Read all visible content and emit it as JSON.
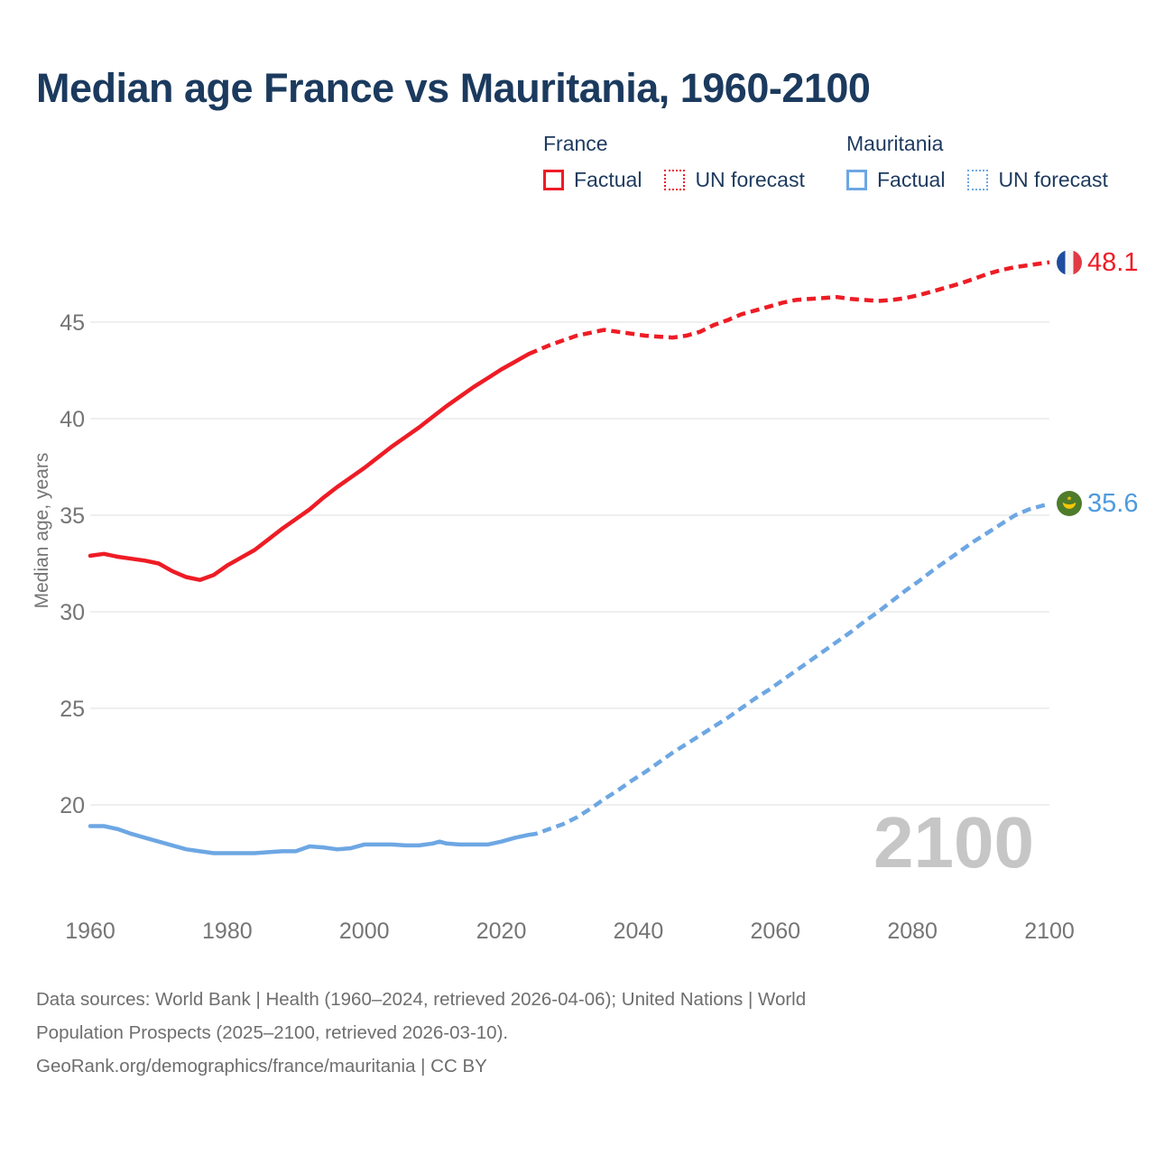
{
  "title": "Median age France vs Mauritania, 1960-2100",
  "legend": {
    "france": {
      "name": "France",
      "factual_label": "Factual",
      "forecast_label": "UN forecast"
    },
    "mauritania": {
      "name": "Mauritania",
      "factual_label": "Factual",
      "forecast_label": "UN forecast"
    }
  },
  "end_labels": {
    "france_value": "48.1",
    "mauritania_value": "35.6"
  },
  "watermark": "2100",
  "footer": {
    "line1": "Data sources: World Bank | Health (1960–2024, retrieved 2026-04-06); United Nations | World",
    "line2": "Population Prospects (2025–2100, retrieved 2026-03-10).",
    "line3": "GeoRank.org/demographics/france/mauritania | CC BY"
  },
  "colors": {
    "france": "#ee1c25",
    "mauritania": "#6da7e3",
    "title_navy": "#1b3a5e",
    "axis_gray": "#757575",
    "gridline": "#eaeaea",
    "watermark_gray": "#c6c6c6"
  },
  "chart_data": {
    "type": "line",
    "title": "Median age France vs Mauritania, 1960-2100",
    "xlabel": "",
    "ylabel": "Median age, years",
    "xlim": [
      1960,
      2100
    ],
    "ylim": [
      16.5,
      48.5
    ],
    "x_ticks": [
      1960,
      1980,
      2000,
      2020,
      2040,
      2060,
      2080,
      2100
    ],
    "y_ticks": [
      20,
      25,
      30,
      35,
      40,
      45
    ],
    "grid": "horizontal-only",
    "legend_position": "top-right",
    "series": [
      {
        "name": "France Factual",
        "style": "solid",
        "color": "#ee1c25",
        "points": [
          [
            1960,
            32.9
          ],
          [
            1962,
            33.0
          ],
          [
            1964,
            32.85
          ],
          [
            1966,
            32.75
          ],
          [
            1968,
            32.65
          ],
          [
            1970,
            32.5
          ],
          [
            1972,
            32.1
          ],
          [
            1974,
            31.8
          ],
          [
            1976,
            31.65
          ],
          [
            1978,
            31.9
          ],
          [
            1980,
            32.4
          ],
          [
            1982,
            32.8
          ],
          [
            1984,
            33.2
          ],
          [
            1986,
            33.75
          ],
          [
            1988,
            34.3
          ],
          [
            1990,
            34.8
          ],
          [
            1992,
            35.3
          ],
          [
            1994,
            35.9
          ],
          [
            1996,
            36.45
          ],
          [
            1998,
            36.95
          ],
          [
            2000,
            37.45
          ],
          [
            2002,
            38.0
          ],
          [
            2004,
            38.55
          ],
          [
            2006,
            39.05
          ],
          [
            2008,
            39.55
          ],
          [
            2010,
            40.1
          ],
          [
            2012,
            40.65
          ],
          [
            2014,
            41.15
          ],
          [
            2016,
            41.65
          ],
          [
            2018,
            42.1
          ],
          [
            2020,
            42.55
          ],
          [
            2022,
            42.95
          ],
          [
            2024,
            43.35
          ]
        ]
      },
      {
        "name": "France UN forecast",
        "style": "dashed",
        "color": "#ee1c25",
        "points": [
          [
            2024,
            43.35
          ],
          [
            2025,
            43.5
          ],
          [
            2027,
            43.8
          ],
          [
            2029,
            44.05
          ],
          [
            2031,
            44.3
          ],
          [
            2033,
            44.45
          ],
          [
            2035,
            44.6
          ],
          [
            2037,
            44.5
          ],
          [
            2039,
            44.4
          ],
          [
            2041,
            44.3
          ],
          [
            2043,
            44.25
          ],
          [
            2045,
            44.2
          ],
          [
            2047,
            44.3
          ],
          [
            2049,
            44.5
          ],
          [
            2051,
            44.85
          ],
          [
            2053,
            45.1
          ],
          [
            2055,
            45.4
          ],
          [
            2057,
            45.6
          ],
          [
            2059,
            45.8
          ],
          [
            2061,
            46.0
          ],
          [
            2063,
            46.15
          ],
          [
            2065,
            46.2
          ],
          [
            2067,
            46.25
          ],
          [
            2069,
            46.3
          ],
          [
            2071,
            46.2
          ],
          [
            2073,
            46.15
          ],
          [
            2075,
            46.1
          ],
          [
            2077,
            46.15
          ],
          [
            2079,
            46.25
          ],
          [
            2081,
            46.4
          ],
          [
            2083,
            46.6
          ],
          [
            2085,
            46.8
          ],
          [
            2087,
            47.0
          ],
          [
            2089,
            47.25
          ],
          [
            2091,
            47.5
          ],
          [
            2093,
            47.7
          ],
          [
            2095,
            47.85
          ],
          [
            2097,
            47.95
          ],
          [
            2099,
            48.05
          ],
          [
            2100,
            48.1
          ]
        ]
      },
      {
        "name": "Mauritania Factual",
        "style": "solid",
        "color": "#6da7e3",
        "points": [
          [
            1960,
            18.9
          ],
          [
            1962,
            18.9
          ],
          [
            1964,
            18.75
          ],
          [
            1966,
            18.5
          ],
          [
            1968,
            18.3
          ],
          [
            1970,
            18.1
          ],
          [
            1972,
            17.9
          ],
          [
            1974,
            17.7
          ],
          [
            1976,
            17.6
          ],
          [
            1978,
            17.5
          ],
          [
            1980,
            17.5
          ],
          [
            1982,
            17.5
          ],
          [
            1984,
            17.5
          ],
          [
            1986,
            17.55
          ],
          [
            1988,
            17.6
          ],
          [
            1990,
            17.6
          ],
          [
            1992,
            17.85
          ],
          [
            1994,
            17.8
          ],
          [
            1996,
            17.7
          ],
          [
            1998,
            17.75
          ],
          [
            2000,
            17.95
          ],
          [
            2002,
            17.95
          ],
          [
            2004,
            17.95
          ],
          [
            2006,
            17.9
          ],
          [
            2008,
            17.9
          ],
          [
            2010,
            18.0
          ],
          [
            2011,
            18.1
          ],
          [
            2012,
            18.0
          ],
          [
            2014,
            17.95
          ],
          [
            2016,
            17.95
          ],
          [
            2018,
            17.95
          ],
          [
            2020,
            18.1
          ],
          [
            2022,
            18.3
          ],
          [
            2024,
            18.45
          ]
        ]
      },
      {
        "name": "Mauritania UN forecast",
        "style": "dashed",
        "color": "#6da7e3",
        "points": [
          [
            2024,
            18.45
          ],
          [
            2025,
            18.5
          ],
          [
            2027,
            18.75
          ],
          [
            2029,
            19.0
          ],
          [
            2031,
            19.35
          ],
          [
            2033,
            19.8
          ],
          [
            2035,
            20.3
          ],
          [
            2037,
            20.75
          ],
          [
            2039,
            21.25
          ],
          [
            2041,
            21.7
          ],
          [
            2043,
            22.2
          ],
          [
            2045,
            22.7
          ],
          [
            2047,
            23.15
          ],
          [
            2049,
            23.6
          ],
          [
            2051,
            24.05
          ],
          [
            2053,
            24.5
          ],
          [
            2055,
            25.0
          ],
          [
            2057,
            25.5
          ],
          [
            2059,
            25.95
          ],
          [
            2061,
            26.45
          ],
          [
            2063,
            26.95
          ],
          [
            2065,
            27.45
          ],
          [
            2067,
            27.95
          ],
          [
            2069,
            28.45
          ],
          [
            2071,
            28.95
          ],
          [
            2073,
            29.5
          ],
          [
            2075,
            30.0
          ],
          [
            2077,
            30.55
          ],
          [
            2079,
            31.1
          ],
          [
            2081,
            31.6
          ],
          [
            2083,
            32.15
          ],
          [
            2085,
            32.65
          ],
          [
            2087,
            33.15
          ],
          [
            2089,
            33.65
          ],
          [
            2091,
            34.1
          ],
          [
            2093,
            34.55
          ],
          [
            2095,
            35.0
          ],
          [
            2097,
            35.3
          ],
          [
            2099,
            35.5
          ],
          [
            2100,
            35.6
          ]
        ]
      }
    ],
    "end_annotations": [
      {
        "series": "France",
        "year": 2100,
        "value": 48.1,
        "flag": "france"
      },
      {
        "series": "Mauritania",
        "year": 2100,
        "value": 35.6,
        "flag": "mauritania"
      }
    ]
  }
}
